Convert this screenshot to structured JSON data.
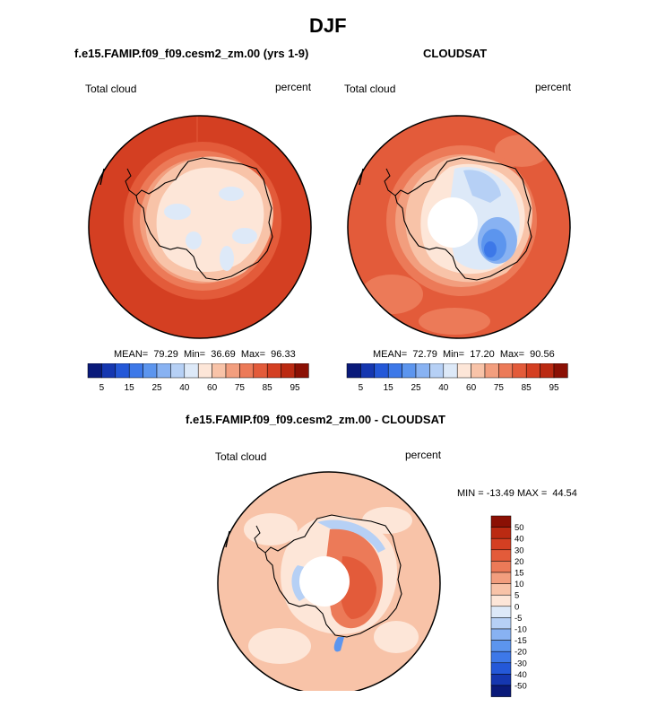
{
  "figure": {
    "title": "DJF",
    "panel1": {
      "title": "f.e15.FAMIP.f09_f09.cesm2_zm.00 (yrs 1-9)",
      "left_label": "Total cloud",
      "right_label": "percent",
      "stats": "MEAN=  79.29  Min=  36.69  Max=  96.33"
    },
    "panel2": {
      "title": "CLOUDSAT",
      "left_label": "Total cloud",
      "right_label": "percent",
      "stats": "MEAN=  72.79  Min=  17.20  Max=  90.56"
    },
    "panel3": {
      "title": "f.e15.FAMIP.f09_f09.cesm2_zm.00 - CLOUDSAT",
      "left_label": "Total cloud",
      "right_label": "percent",
      "stats": "MIN = -13.49 MAX =  44.54"
    }
  },
  "chart_data": [
    {
      "type": "heatmap",
      "projection": "south-polar-stereographic",
      "title": "f.e15.FAMIP.f09_f09.cesm2_zm.00 (yrs 1-9)",
      "variable": "Total cloud",
      "units": "percent",
      "mean": 79.29,
      "min": 36.69,
      "max": 96.33,
      "colorbar": {
        "orientation": "horizontal",
        "levels": [
          5,
          10,
          15,
          20,
          25,
          30,
          40,
          50,
          60,
          70,
          75,
          80,
          85,
          90,
          95
        ],
        "tick_labels": [
          "5",
          "15",
          "25",
          "40",
          "60",
          "75",
          "85",
          "95"
        ],
        "colors": [
          "#0a1a7a",
          "#1537b0",
          "#2458d8",
          "#3d78e8",
          "#5c95ee",
          "#88b2f2",
          "#b6d0f5",
          "#dde9f8",
          "#fde6d8",
          "#f8c3a8",
          "#f29e7e",
          "#ec7a58",
          "#e35b3a",
          "#d43f22",
          "#bb2a12",
          "#8b1004"
        ]
      }
    },
    {
      "type": "heatmap",
      "projection": "south-polar-stereographic",
      "title": "CLOUDSAT",
      "variable": "Total cloud",
      "units": "percent",
      "mean": 72.79,
      "min": 17.2,
      "max": 90.56,
      "colorbar": {
        "orientation": "horizontal",
        "levels": [
          5,
          10,
          15,
          20,
          25,
          30,
          40,
          50,
          60,
          70,
          75,
          80,
          85,
          90,
          95
        ],
        "tick_labels": [
          "5",
          "15",
          "25",
          "40",
          "60",
          "75",
          "85",
          "95"
        ],
        "colors": [
          "#0a1a7a",
          "#1537b0",
          "#2458d8",
          "#3d78e8",
          "#5c95ee",
          "#88b2f2",
          "#b6d0f5",
          "#dde9f8",
          "#fde6d8",
          "#f8c3a8",
          "#f29e7e",
          "#ec7a58",
          "#e35b3a",
          "#d43f22",
          "#bb2a12",
          "#8b1004"
        ]
      }
    },
    {
      "type": "heatmap",
      "projection": "south-polar-stereographic",
      "title": "f.e15.FAMIP.f09_f09.cesm2_zm.00 - CLOUDSAT",
      "variable": "Total cloud",
      "units": "percent",
      "min": -13.49,
      "max": 44.54,
      "colorbar": {
        "orientation": "vertical",
        "tick_labels": [
          "50",
          "40",
          "30",
          "20",
          "15",
          "10",
          "5",
          "0",
          "-5",
          "-10",
          "-15",
          "-20",
          "-30",
          "-40",
          "-50"
        ],
        "colors": [
          "#8b1004",
          "#bb2a12",
          "#d43f22",
          "#e35b3a",
          "#ec7a58",
          "#f29e7e",
          "#f8c3a8",
          "#fde6d8",
          "#dde9f8",
          "#b6d0f5",
          "#88b2f2",
          "#5c95ee",
          "#3d78e8",
          "#2458d8",
          "#1537b0",
          "#0a1a7a"
        ]
      }
    }
  ]
}
